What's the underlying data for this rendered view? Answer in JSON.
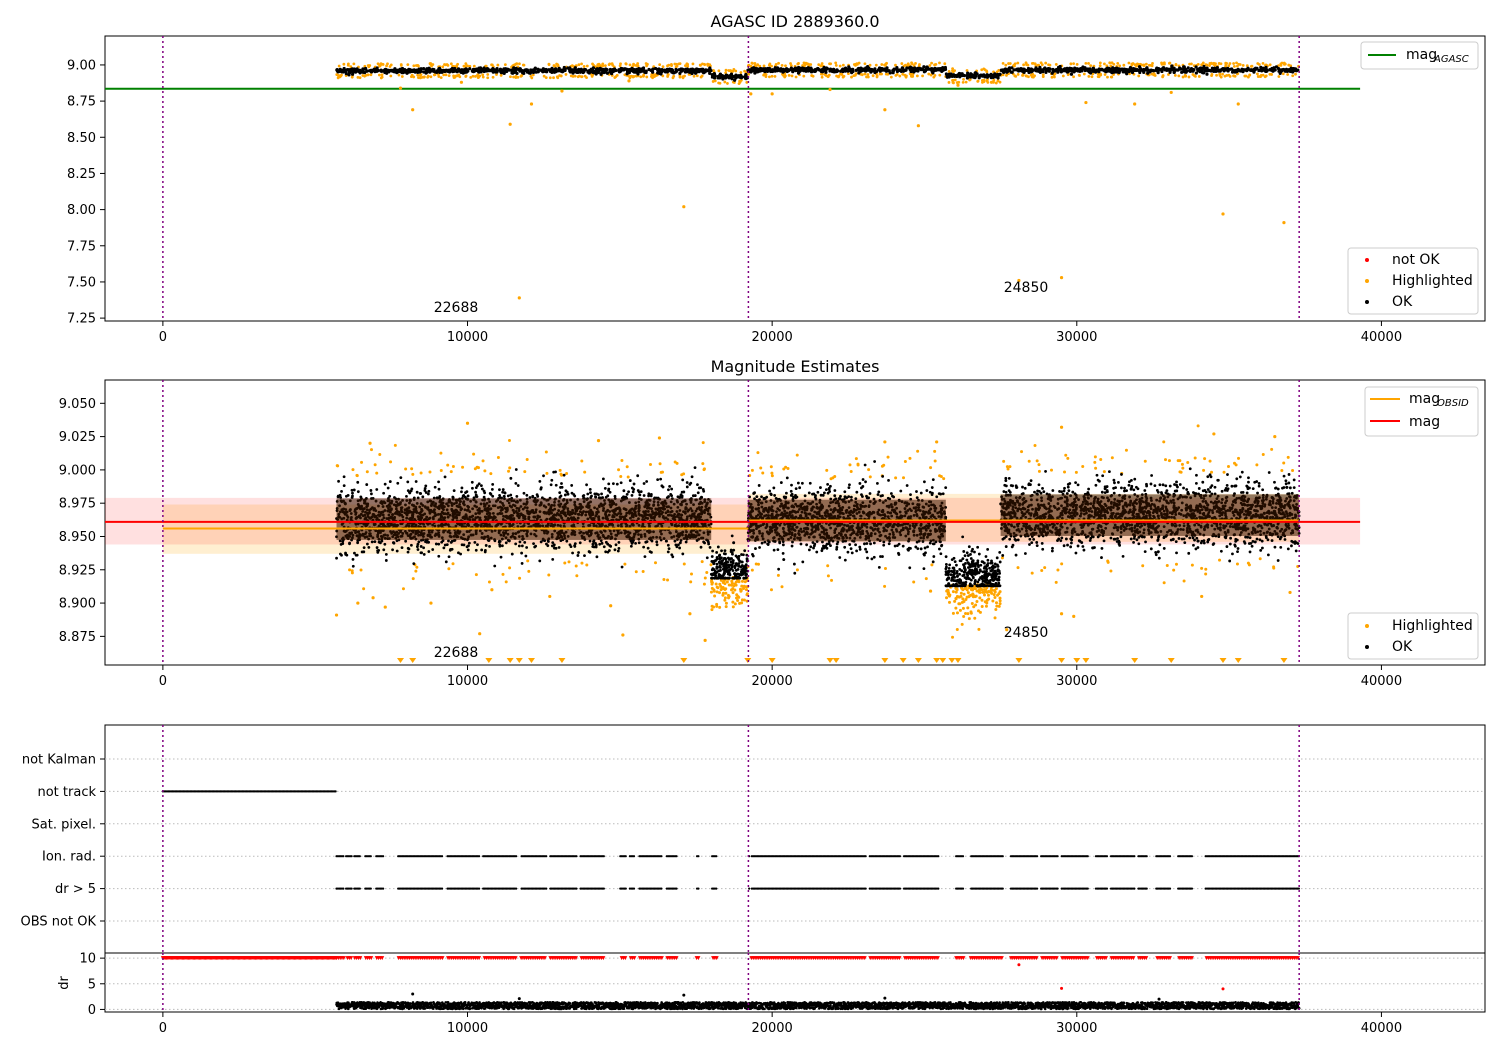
{
  "chart_data": [
    {
      "panel": "top",
      "type": "scatter",
      "title": "AGASC ID 2889360.0",
      "xlim": [
        -1900,
        43400
      ],
      "ylim": [
        7.23,
        9.2
      ],
      "xticks": [
        0,
        10000,
        20000,
        30000,
        40000
      ],
      "xtick_labels": [
        "0",
        "10000",
        "20000",
        "30000",
        "40000"
      ],
      "yticks": [
        7.25,
        7.5,
        7.75,
        8.0,
        8.25,
        8.5,
        8.75,
        9.0
      ],
      "ytick_labels": [
        "7.25",
        "7.50",
        "7.75",
        "8.00",
        "8.25",
        "8.50",
        "8.75",
        "9.00"
      ],
      "obsid_boundaries": [
        0,
        19220,
        37300
      ],
      "mag_agasc": {
        "value": 8.835,
        "x_range": [
          -1900,
          39300
        ],
        "color": "#008000"
      },
      "band": {
        "x_range": [
          5700,
          37300
        ],
        "segments": [
          {
            "x": [
              5700,
              18000
            ],
            "center": 8.96
          },
          {
            "x": [
              18000,
              19200
            ],
            "center": 8.92
          },
          {
            "x": [
              19200,
              25700
            ],
            "center": 8.965
          },
          {
            "x": [
              25700,
              27500
            ],
            "center": 8.925
          },
          {
            "x": [
              27500,
              37300
            ],
            "center": 8.965
          }
        ],
        "half_width": 0.025,
        "color": "#000000"
      },
      "highlighted_points": [
        {
          "x": 8200,
          "y": 8.69
        },
        {
          "x": 11400,
          "y": 8.59
        },
        {
          "x": 11700,
          "y": 7.39
        },
        {
          "x": 12100,
          "y": 8.73
        },
        {
          "x": 13100,
          "y": 8.82
        },
        {
          "x": 17100,
          "y": 8.02
        },
        {
          "x": 19300,
          "y": 8.8
        },
        {
          "x": 20000,
          "y": 8.8
        },
        {
          "x": 21900,
          "y": 8.83
        },
        {
          "x": 23700,
          "y": 8.69
        },
        {
          "x": 24800,
          "y": 8.58
        },
        {
          "x": 28100,
          "y": 7.51
        },
        {
          "x": 29500,
          "y": 7.53
        },
        {
          "x": 30300,
          "y": 8.74
        },
        {
          "x": 31900,
          "y": 8.73
        },
        {
          "x": 33100,
          "y": 8.81
        },
        {
          "x": 34800,
          "y": 7.97
        },
        {
          "x": 35300,
          "y": 8.73
        },
        {
          "x": 36800,
          "y": 7.91
        },
        {
          "x": 7800,
          "y": 8.84
        },
        {
          "x": 9800,
          "y": 8.88
        },
        {
          "x": 15300,
          "y": 8.89
        },
        {
          "x": 26100,
          "y": 8.86
        },
        {
          "x": 27200,
          "y": 8.88
        }
      ],
      "annotations": [
        {
          "text": "22688",
          "x": 9700,
          "y": 7.32
        },
        {
          "text": "24850",
          "x": 28200,
          "y": 7.45
        }
      ],
      "legend_top": {
        "position": "top-right",
        "entries": [
          {
            "label": "mag",
            "sub": "AGASC",
            "color": "#008000",
            "kind": "line"
          }
        ]
      },
      "legend_bottom": {
        "position": "lower-right",
        "entries": [
          {
            "label": "not OK",
            "color": "#ff0000",
            "kind": "dot"
          },
          {
            "label": "Highlighted",
            "color": "#ffa500",
            "kind": "dot"
          },
          {
            "label": "OK",
            "color": "#000000",
            "kind": "dot"
          }
        ]
      }
    },
    {
      "panel": "middle",
      "type": "scatter",
      "title": "Magnitude Estimates",
      "xlim": [
        -1900,
        43400
      ],
      "ylim": [
        8.8535,
        9.0675
      ],
      "xticks": [
        0,
        10000,
        20000,
        30000,
        40000
      ],
      "xtick_labels": [
        "0",
        "10000",
        "20000",
        "30000",
        "40000"
      ],
      "yticks": [
        8.875,
        8.9,
        8.925,
        8.95,
        8.975,
        9.0,
        9.025,
        9.05
      ],
      "ytick_labels": [
        "8.875",
        "8.900",
        "8.925",
        "8.950",
        "8.975",
        "9.000",
        "9.025",
        "9.050"
      ],
      "obsid_boundaries": [
        0,
        19220,
        37300
      ],
      "mag": {
        "value": 8.961,
        "band": [
          8.944,
          8.979
        ],
        "x_range": [
          -1900,
          39300
        ],
        "color": "#ff0000"
      },
      "mag_obsid": [
        {
          "x": [
            0,
            19220
          ],
          "value": 8.956,
          "band": [
            8.937,
            8.974
          ]
        },
        {
          "x": [
            19220,
            37300
          ],
          "value": 8.962,
          "band": [
            8.946,
            8.982
          ]
        }
      ],
      "density_segments": [
        {
          "x": [
            5700,
            18000
          ],
          "center": 8.963,
          "spread": 0.026
        },
        {
          "x": [
            18000,
            19200
          ],
          "center": 8.925,
          "spread": 0.018
        },
        {
          "x": [
            19200,
            25700
          ],
          "center": 8.962,
          "spread": 0.026
        },
        {
          "x": [
            25700,
            27500
          ],
          "center": 8.92,
          "spread": 0.02
        },
        {
          "x": [
            27500,
            37300
          ],
          "center": 8.966,
          "spread": 0.026
        }
      ],
      "highlighted_points": [
        {
          "x": 5700,
          "y": 8.891
        },
        {
          "x": 6400,
          "y": 8.9
        },
        {
          "x": 6900,
          "y": 8.904
        },
        {
          "x": 7300,
          "y": 8.897
        },
        {
          "x": 8800,
          "y": 8.9
        },
        {
          "x": 10400,
          "y": 8.877
        },
        {
          "x": 10800,
          "y": 8.91
        },
        {
          "x": 12700,
          "y": 8.905
        },
        {
          "x": 14700,
          "y": 8.898
        },
        {
          "x": 15100,
          "y": 8.876
        },
        {
          "x": 17300,
          "y": 8.892
        },
        {
          "x": 17800,
          "y": 8.872
        },
        {
          "x": 25200,
          "y": 8.909
        },
        {
          "x": 27700,
          "y": 8.88
        },
        {
          "x": 29500,
          "y": 8.892
        },
        {
          "x": 29900,
          "y": 8.89
        },
        {
          "x": 34100,
          "y": 8.905
        },
        {
          "x": 37000,
          "y": 8.908
        },
        {
          "x": 10000,
          "y": 9.035
        },
        {
          "x": 29500,
          "y": 9.032
        },
        {
          "x": 16300,
          "y": 9.024
        },
        {
          "x": 34500,
          "y": 9.027
        },
        {
          "x": 36500,
          "y": 9.025
        },
        {
          "x": 23700,
          "y": 9.021
        },
        {
          "x": 25400,
          "y": 9.021
        },
        {
          "x": 6800,
          "y": 9.02
        },
        {
          "x": 14300,
          "y": 9.022
        }
      ],
      "offscale_markers_x": [
        7800,
        8200,
        10700,
        11400,
        11700,
        12100,
        13100,
        17100,
        19200,
        20000,
        21900,
        22100,
        23700,
        24300,
        24800,
        25400,
        25600,
        25900,
        26100,
        28100,
        29500,
        30000,
        30300,
        31900,
        33100,
        34800,
        35300,
        36800
      ],
      "annotations": [
        {
          "text": "22688",
          "x": 9700,
          "y": 8.86
        },
        {
          "text": "24850",
          "x": 28200,
          "y": 8.879
        }
      ],
      "legend_top": {
        "position": "top-right",
        "entries": [
          {
            "label": "mag",
            "sub": "OBSID",
            "color": "#ffa500",
            "kind": "line"
          },
          {
            "label": "mag",
            "sub": "",
            "color": "#ff0000",
            "kind": "line"
          }
        ]
      },
      "legend_bottom": {
        "position": "lower-right",
        "entries": [
          {
            "label": "Highlighted",
            "color": "#ffa500",
            "kind": "dot"
          },
          {
            "label": "OK",
            "color": "#000000",
            "kind": "dot"
          }
        ]
      }
    },
    {
      "panel": "flags",
      "type": "scatter",
      "xlim": [
        -1900,
        43400
      ],
      "obsid_boundaries": [
        0,
        19220,
        37300
      ],
      "categories": [
        "not Kalman",
        "not track",
        "Sat. pixel.",
        "Ion. rad.",
        "dr > 5",
        "OBS not OK"
      ],
      "not_track_range": [
        0,
        5700
      ],
      "ion_rad_range": [
        5700,
        37300
      ],
      "dr5_range": [
        5700,
        37300
      ],
      "gaps": [
        [
          5950,
          6000
        ],
        [
          6200,
          6250
        ],
        [
          6500,
          6600
        ],
        [
          6850,
          7000
        ],
        [
          7250,
          7700
        ],
        [
          9200,
          9300
        ],
        [
          10400,
          10500
        ],
        [
          11600,
          11750
        ],
        [
          12600,
          12700
        ],
        [
          13600,
          13700
        ],
        [
          14500,
          15000
        ],
        [
          15200,
          15300
        ],
        [
          15500,
          15600
        ],
        [
          16400,
          16500
        ],
        [
          16900,
          17500
        ],
        [
          17600,
          18000
        ],
        [
          18200,
          19200
        ],
        [
          19250,
          19300
        ],
        [
          23100,
          23200
        ],
        [
          24200,
          24300
        ],
        [
          25500,
          26000
        ],
        [
          26300,
          26500
        ],
        [
          27600,
          27800
        ],
        [
          28700,
          28800
        ],
        [
          29400,
          29500
        ],
        [
          30400,
          30600
        ],
        [
          31000,
          31100
        ],
        [
          31900,
          32000
        ],
        [
          32300,
          32600
        ],
        [
          33100,
          33300
        ],
        [
          33800,
          34200
        ]
      ]
    },
    {
      "panel": "dr",
      "type": "scatter",
      "ylabel": "dr",
      "xlim": [
        -1900,
        43400
      ],
      "ylim": [
        -0.5,
        11
      ],
      "xticks": [
        0,
        10000,
        20000,
        30000,
        40000
      ],
      "xtick_labels": [
        "0",
        "10000",
        "20000",
        "30000",
        "40000"
      ],
      "yticks": [
        0,
        5,
        10
      ],
      "ytick_labels": [
        "0",
        "5",
        "10"
      ],
      "obsid_boundaries": [
        0,
        19220,
        37300
      ],
      "clipped_value": 10,
      "clipped_ranges": [
        [
          0,
          5700
        ],
        [
          5700,
          37300
        ]
      ],
      "ok_band": {
        "x": [
          5700,
          37300
        ],
        "range": [
          0.1,
          1.4
        ]
      },
      "outliers": [
        {
          "x": 8200,
          "y": 3.0
        },
        {
          "x": 17100,
          "y": 2.8
        },
        {
          "x": 23700,
          "y": 2.2
        },
        {
          "x": 28100,
          "y": 8.7
        },
        {
          "x": 29500,
          "y": 4.1
        },
        {
          "x": 34800,
          "y": 4.0
        },
        {
          "x": 11700,
          "y": 2.1
        },
        {
          "x": 32700,
          "y": 2.0
        }
      ]
    }
  ]
}
